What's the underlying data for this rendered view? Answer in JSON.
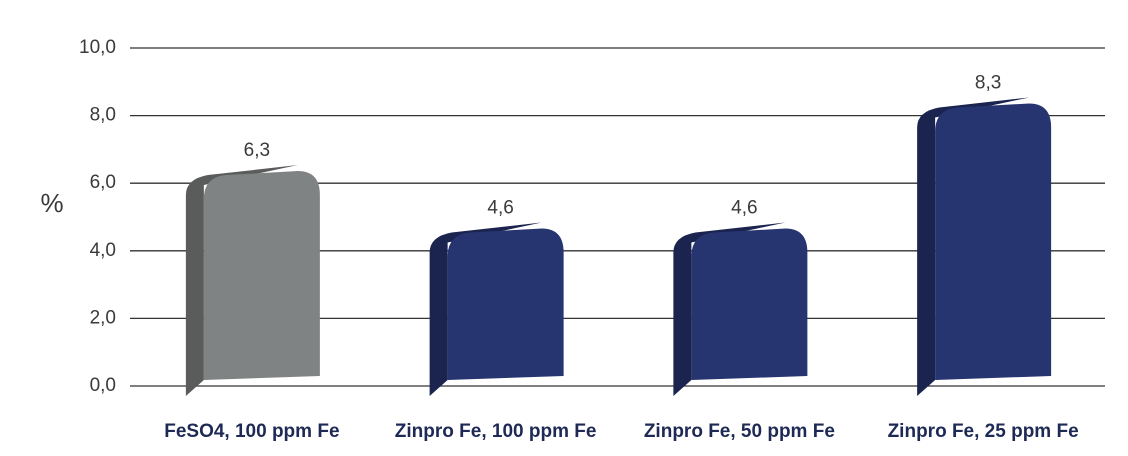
{
  "chart_data": {
    "type": "bar",
    "y_label": "%",
    "categories": [
      "FeSO4, 100 ppm Fe",
      "Zinpro Fe, 100 ppm Fe",
      "Zinpro Fe, 50 ppm Fe",
      "Zinpro Fe, 25 ppm Fe"
    ],
    "values": [
      6.3,
      4.6,
      4.6,
      8.3
    ],
    "value_labels": [
      "6,3",
      "4,6",
      "4,6",
      "8,3"
    ],
    "colors": [
      "#808384",
      "#263470",
      "#263470",
      "#263470"
    ],
    "ylim": [
      0,
      10
    ],
    "yticks": [
      {
        "value": 0,
        "label": "0,0"
      },
      {
        "value": 2,
        "label": "2,0"
      },
      {
        "value": 4,
        "label": "4,0"
      },
      {
        "value": 6,
        "label": "6,0"
      },
      {
        "value": 8,
        "label": "8,0"
      },
      {
        "value": 10,
        "label": "10,0"
      }
    ],
    "grid": true
  }
}
